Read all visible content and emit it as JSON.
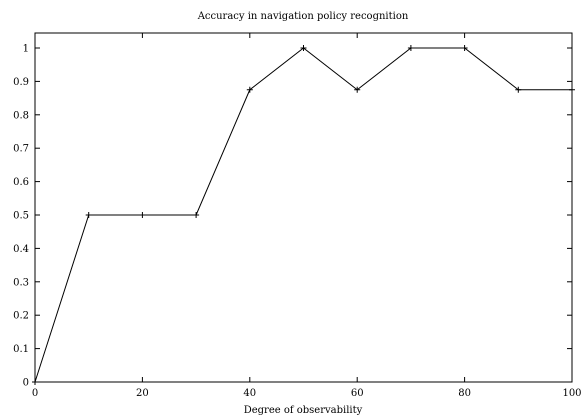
{
  "chart_data": {
    "type": "line",
    "title": "Accuracy in navigation policy recognition",
    "xlabel": "Degree of observability",
    "ylabel": "",
    "xlim": [
      0,
      100
    ],
    "ylim": [
      0,
      1.05
    ],
    "x_ticks": [
      0,
      20,
      40,
      60,
      80,
      100
    ],
    "y_ticks": [
      0,
      0.1,
      0.2,
      0.3,
      0.4,
      0.5,
      0.6,
      0.7,
      0.8,
      0.9,
      1
    ],
    "x_tick_labels": [
      "0",
      "20",
      "40",
      "60",
      "80",
      "100"
    ],
    "y_tick_labels": [
      "0",
      "0.1",
      "0.2",
      "0.3",
      "0.4",
      "0.5",
      "0.6",
      "0.7",
      "0.8",
      "0.9",
      "1"
    ],
    "grid": false,
    "legend": "none",
    "marker": "plus",
    "line_color": "#000000",
    "series": [
      {
        "x": [
          0,
          10,
          20,
          30,
          40,
          50,
          60,
          70,
          80,
          90,
          100
        ],
        "values": [
          0,
          0.5,
          0.5,
          0.5,
          0.875,
          1.0,
          0.875,
          1.0,
          1.0,
          0.875,
          0.875
        ]
      }
    ]
  }
}
